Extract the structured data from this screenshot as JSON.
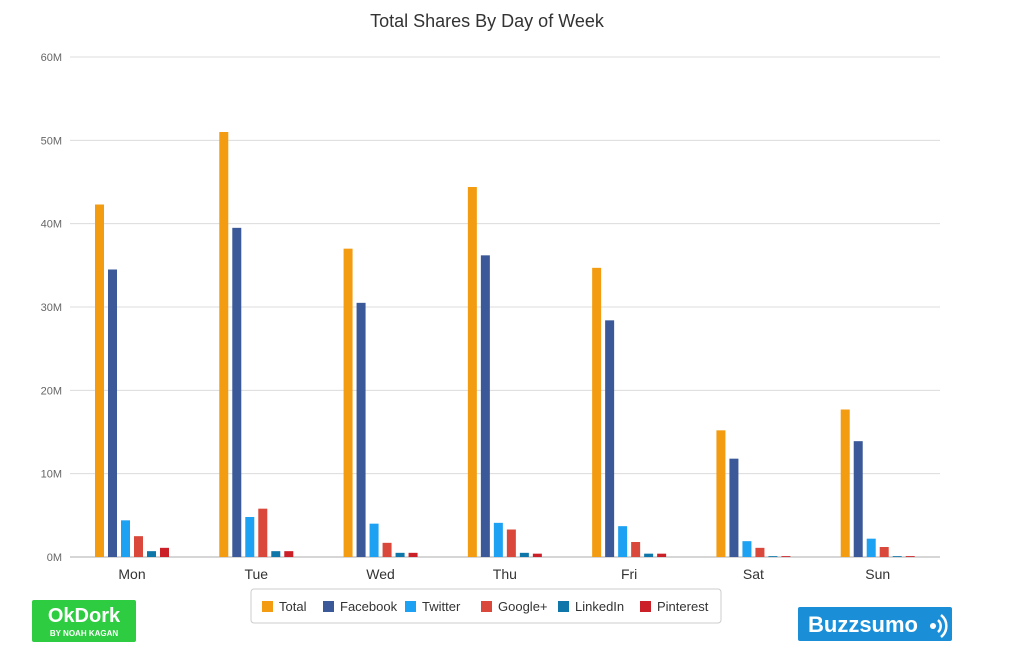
{
  "chart_data": {
    "type": "bar",
    "title": "Total Shares By Day of Week",
    "xlabel": "",
    "ylabel": "",
    "ylim": [
      0,
      60000000
    ],
    "yticks": [
      "0M",
      "10M",
      "20M",
      "30M",
      "40M",
      "50M",
      "60M"
    ],
    "grid": true,
    "legend_placement": "bottom",
    "categories": [
      "Mon",
      "Tue",
      "Wed",
      "Thu",
      "Fri",
      "Sat",
      "Sun"
    ],
    "series": [
      {
        "name": "Total",
        "color": "#f39c12",
        "values": [
          42300000,
          51000000,
          37000000,
          44400000,
          34700000,
          15200000,
          17700000
        ]
      },
      {
        "name": "Facebook",
        "color": "#3b5998",
        "values": [
          34500000,
          39500000,
          30500000,
          36200000,
          28400000,
          11800000,
          13900000
        ]
      },
      {
        "name": "Twitter",
        "color": "#1da1f2",
        "values": [
          4400000,
          4800000,
          4000000,
          4100000,
          3700000,
          1900000,
          2200000
        ]
      },
      {
        "name": "Google+",
        "color": "#d9483b",
        "values": [
          2500000,
          5800000,
          1700000,
          3300000,
          1800000,
          1100000,
          1200000
        ]
      },
      {
        "name": "LinkedIn",
        "color": "#0e76a8",
        "values": [
          700000,
          700000,
          500000,
          500000,
          400000,
          100000,
          100000
        ]
      },
      {
        "name": "Pinterest",
        "color": "#cb2027",
        "values": [
          1100000,
          700000,
          500000,
          400000,
          400000,
          100000,
          100000
        ]
      }
    ]
  },
  "logos": {
    "okdork": {
      "name": "OkDork",
      "sub": "BY NOAH KAGAN",
      "color": "#2ecc40"
    },
    "buzzsumo": {
      "name": "Buzzsumo",
      "color": "#1a8fd8"
    }
  }
}
